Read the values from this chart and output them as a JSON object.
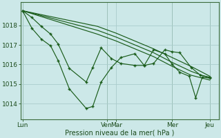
{
  "bg_color": "#cce8e8",
  "grid_color": "#aacccc",
  "line_color": "#1a5c1a",
  "marker_color": "#1a5c1a",
  "xlabel": "Pression niveau de la mer( hPa )",
  "ylim": [
    1013.2,
    1019.2
  ],
  "yticks": [
    1014,
    1015,
    1016,
    1017,
    1018
  ],
  "xlim": [
    -2,
    210
  ],
  "day_labels": [
    "Lun",
    "Ven",
    "Mar",
    "Mer",
    "Jeu"
  ],
  "day_positions": [
    0,
    90,
    100,
    160,
    200
  ],
  "vline_positions": [
    0,
    90,
    160,
    200
  ],
  "smooth1_x": [
    0,
    20,
    40,
    60,
    80,
    100,
    120,
    140,
    160,
    180,
    200
  ],
  "smooth1_y": [
    1018.75,
    1018.55,
    1018.35,
    1018.15,
    1017.95,
    1017.6,
    1017.2,
    1016.8,
    1016.35,
    1015.9,
    1015.4
  ],
  "smooth2_x": [
    0,
    20,
    40,
    60,
    80,
    100,
    120,
    140,
    160,
    180,
    200
  ],
  "smooth2_y": [
    1018.75,
    1018.5,
    1018.25,
    1018.0,
    1017.75,
    1017.4,
    1017.0,
    1016.6,
    1016.1,
    1015.65,
    1015.3
  ],
  "smooth3_x": [
    0,
    20,
    40,
    60,
    80,
    100,
    120,
    140,
    160,
    180,
    200
  ],
  "smooth3_y": [
    1018.75,
    1018.45,
    1018.15,
    1017.85,
    1017.55,
    1017.2,
    1016.8,
    1016.4,
    1015.9,
    1015.45,
    1015.2
  ],
  "detail1_x": [
    0,
    10,
    20,
    30,
    38,
    50,
    68,
    75,
    84,
    95,
    105,
    120,
    130,
    140,
    152,
    160,
    168,
    180,
    190,
    200
  ],
  "detail1_y": [
    1018.75,
    1017.85,
    1017.3,
    1016.95,
    1016.2,
    1014.75,
    1013.75,
    1013.85,
    1015.1,
    1015.85,
    1016.35,
    1016.55,
    1015.95,
    1016.05,
    1016.75,
    1016.65,
    1016.6,
    1015.85,
    1015.45,
    1015.35
  ],
  "detail2_x": [
    0,
    10,
    20,
    30,
    38,
    50,
    68,
    75,
    84,
    95,
    105,
    120,
    130,
    140,
    152,
    160,
    168,
    178,
    185,
    192,
    200
  ],
  "detail2_y": [
    1018.75,
    1018.4,
    1017.95,
    1017.55,
    1017.05,
    1015.8,
    1015.1,
    1015.85,
    1016.85,
    1016.3,
    1016.05,
    1015.95,
    1015.95,
    1016.75,
    1016.55,
    1016.0,
    1015.6,
    1015.4,
    1014.3,
    1015.35,
    1015.3
  ]
}
